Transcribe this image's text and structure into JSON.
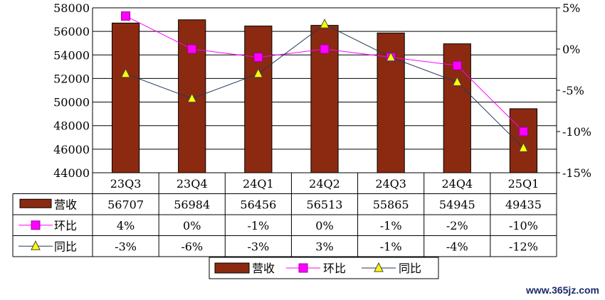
{
  "chart_data": {
    "type": "bar",
    "categories": [
      "23Q3",
      "23Q4",
      "24Q1",
      "24Q2",
      "24Q3",
      "24Q4",
      "25Q1"
    ],
    "ylim": [
      44000,
      58000
    ],
    "y_ticks": [
      "58000",
      "56000",
      "54000",
      "52000",
      "50000",
      "48000",
      "46000",
      "44000"
    ],
    "y2lim": [
      -15,
      5
    ],
    "y2_ticks": [
      "5%",
      "0%",
      "-5%",
      "-10%",
      "-15%"
    ],
    "grid": true,
    "series": [
      {
        "name": "营收",
        "type": "bar",
        "axis": "left",
        "color": "#8b2a10",
        "values": [
          56707,
          56984,
          56456,
          56513,
          55865,
          54945,
          49435
        ],
        "labels": [
          "56707",
          "56984",
          "56456",
          "56513",
          "55865",
          "54945",
          "49435"
        ]
      },
      {
        "name": "环比",
        "type": "line",
        "axis": "right",
        "color": "#ff00ff",
        "marker": "square",
        "values": [
          4,
          0,
          -1,
          0,
          -1,
          -2,
          -10
        ],
        "labels": [
          "4%",
          "0%",
          "-1%",
          "0%",
          "-1%",
          "-2%",
          "-10%"
        ]
      },
      {
        "name": "同比",
        "type": "line",
        "axis": "right",
        "color": "#1f3a5a",
        "marker": "triangle",
        "marker_color": "#ffff00",
        "values": [
          -3,
          -6,
          -3,
          3,
          -1,
          -4,
          -12
        ],
        "labels": [
          "-3%",
          "-6%",
          "-3%",
          "3%",
          "-1%",
          "-4%",
          "-12%"
        ]
      }
    ],
    "legend": {
      "position": "bottom",
      "entries": [
        "营收",
        "环比",
        "同比"
      ]
    }
  },
  "watermark": "www.365jz.com"
}
